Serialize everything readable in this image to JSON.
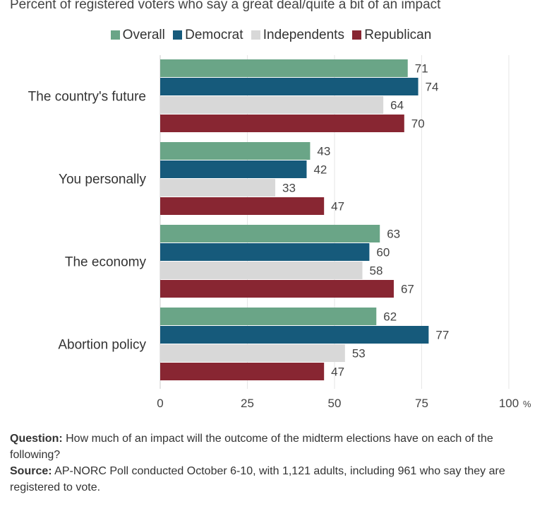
{
  "subtitle": "Percent of registered voters who say a great deal/quite a bit of an impact",
  "legend": [
    {
      "name": "Overall",
      "color": "#6aa587"
    },
    {
      "name": "Democrat",
      "color": "#165a7b"
    },
    {
      "name": "Independents",
      "color": "#d8d8d8"
    },
    {
      "name": "Republican",
      "color": "#882632"
    }
  ],
  "chart_data": {
    "type": "bar",
    "orientation": "horizontal",
    "categories": [
      "The country's future",
      "You personally",
      "The economy",
      "Abortion policy"
    ],
    "series": [
      {
        "name": "Overall",
        "color": "#6aa587",
        "values": [
          71,
          43,
          63,
          62
        ]
      },
      {
        "name": "Democrat",
        "color": "#165a7b",
        "values": [
          74,
          42,
          60,
          77
        ]
      },
      {
        "name": "Independents",
        "color": "#d8d8d8",
        "values": [
          64,
          33,
          58,
          53
        ]
      },
      {
        "name": "Republican",
        "color": "#882632",
        "values": [
          70,
          47,
          67,
          47
        ]
      }
    ],
    "xlim": [
      0,
      100
    ],
    "xticks": [
      "0",
      "25",
      "50",
      "75",
      "100"
    ],
    "xunit": "%",
    "grid": true,
    "legend_position": "top"
  },
  "notes": {
    "question_label": "Question:",
    "question_text": " How much of an impact will the outcome of the midterm elections have on each of the following?",
    "source_label": "Source:",
    "source_text": " AP-NORC Poll conducted October 6-10, with 1,121 adults, including 961 who say they are registered to vote."
  }
}
